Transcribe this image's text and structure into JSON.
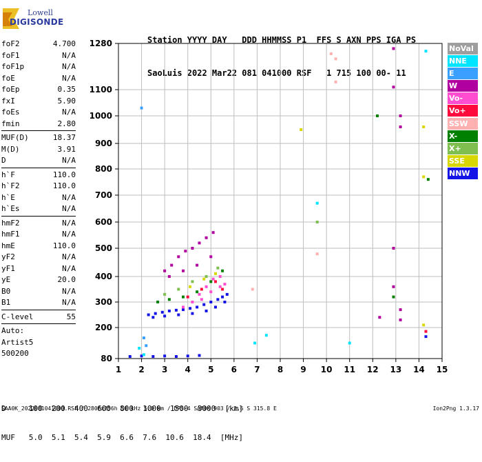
{
  "logo": {
    "line1": "Lowell",
    "line2": "DIGISONDE"
  },
  "header": {
    "labels": "Station YYYY DAY   DDD HHMMSS P1  FFS S AXN PPS IGA PS",
    "values": "SaoLuis 2022 Mar22 081 041000 RSF   1 715 100 00- 11"
  },
  "params": [
    {
      "name": "foF2",
      "value": "4.700"
    },
    {
      "name": "foF1",
      "value": "N/A"
    },
    {
      "name": "foF1p",
      "value": "N/A"
    },
    {
      "name": "foE",
      "value": "N/A"
    },
    {
      "name": "foEp",
      "value": "0.35"
    },
    {
      "name": "fxI",
      "value": "5.90"
    },
    {
      "name": "foEs",
      "value": "N/A"
    },
    {
      "name": "fmin",
      "value": "2.80"
    },
    {
      "name": "MUF(D)",
      "value": "18.37"
    },
    {
      "name": "M(D)",
      "value": "3.91"
    },
    {
      "name": "D",
      "value": "N/A"
    },
    {
      "name": "h`F",
      "value": "110.0"
    },
    {
      "name": "h`F2",
      "value": "110.0"
    },
    {
      "name": "h`E",
      "value": "N/A"
    },
    {
      "name": "h`Es",
      "value": "N/A"
    },
    {
      "name": "hmF2",
      "value": "N/A"
    },
    {
      "name": "hmF1",
      "value": "N/A"
    },
    {
      "name": "hmE",
      "value": "110.0"
    },
    {
      "name": "yF2",
      "value": "N/A"
    },
    {
      "name": "yF1",
      "value": "N/A"
    },
    {
      "name": "yE",
      "value": "20.0"
    },
    {
      "name": "B0",
      "value": "N/A"
    },
    {
      "name": "B1",
      "value": "N/A"
    },
    {
      "name": "C-level",
      "value": "55"
    }
  ],
  "auto": {
    "line1": "Auto:",
    "line2": "Artist5",
    "line3": "500200"
  },
  "legend": [
    {
      "label": "NoVal",
      "color": "#9e9e9e"
    },
    {
      "label": "NNE",
      "color": "#00e5ff"
    },
    {
      "label": "E",
      "color": "#3aa0ff"
    },
    {
      "label": "W",
      "color": "#b0009e"
    },
    {
      "label": "Vo-",
      "color": "#ff4fd0"
    },
    {
      "label": "Vo+",
      "color": "#ff0a3c"
    },
    {
      "label": "SSW",
      "color": "#ffb0b0"
    },
    {
      "label": "X-",
      "color": "#008000"
    },
    {
      "label": "X+",
      "color": "#7fbf4f"
    },
    {
      "label": "SSE",
      "color": "#d8d800"
    },
    {
      "label": "NNW",
      "color": "#1414e6"
    }
  ],
  "footer": {
    "d_line": "D     100  200  400  600  800  1000  1500  3000  [km]",
    "muf_line": "MUF   5.0  5.1  5.4  5.9  6.6  7.6  10.6  18.4  [MHz]",
    "file_line": "SAA0K_2022081041000.RSF / 280fx256h 50 kHz 5.0 km / DPS-4 SAA0K 903 / 2.6 S 315.8 E",
    "version": "Ion2Png 1.3.17"
  },
  "chart_data": {
    "type": "scatter",
    "xlabel": "",
    "ylabel": "",
    "xlim": [
      1,
      15
    ],
    "ylim": [
      80,
      1280
    ],
    "x_ticks": [
      1,
      2,
      3,
      4,
      5,
      6,
      7,
      8,
      9,
      10,
      11,
      12,
      13,
      14,
      15
    ],
    "y_ticks": [
      80,
      200,
      300,
      400,
      500,
      600,
      700,
      800,
      900,
      1000,
      1100,
      1280
    ],
    "grid": true,
    "legend_position": "right",
    "series": [
      {
        "name": "NNW",
        "color": "#1414e6",
        "points": [
          [
            2.3,
            250
          ],
          [
            2.6,
            255
          ],
          [
            2.9,
            260
          ],
          [
            3.2,
            265
          ],
          [
            3.5,
            268
          ],
          [
            3.8,
            270
          ],
          [
            4.1,
            275
          ],
          [
            4.4,
            280
          ],
          [
            4.7,
            290
          ],
          [
            5.0,
            300
          ],
          [
            5.3,
            310
          ],
          [
            5.5,
            320
          ],
          [
            5.7,
            330
          ],
          [
            2.5,
            240
          ],
          [
            3.0,
            245
          ],
          [
            3.6,
            250
          ],
          [
            4.2,
            255
          ],
          [
            4.8,
            265
          ],
          [
            5.2,
            280
          ],
          [
            5.6,
            300
          ],
          [
            1.5,
            88
          ],
          [
            2.0,
            90
          ],
          [
            2.5,
            88
          ],
          [
            3.0,
            90
          ],
          [
            3.5,
            88
          ],
          [
            4.0,
            90
          ],
          [
            4.5,
            92
          ],
          [
            14.3,
            165
          ]
        ]
      },
      {
        "name": "W",
        "color": "#b0009e",
        "points": [
          [
            3.0,
            420
          ],
          [
            3.3,
            440
          ],
          [
            3.6,
            470
          ],
          [
            3.9,
            490
          ],
          [
            4.2,
            500
          ],
          [
            4.5,
            520
          ],
          [
            4.8,
            540
          ],
          [
            5.1,
            560
          ],
          [
            3.2,
            400
          ],
          [
            3.8,
            420
          ],
          [
            4.4,
            440
          ],
          [
            5.0,
            470
          ],
          [
            12.9,
            1260
          ],
          [
            12.9,
            1110
          ],
          [
            13.2,
            1000
          ],
          [
            13.2,
            960
          ],
          [
            12.9,
            500
          ],
          [
            12.9,
            360
          ],
          [
            13.2,
            270
          ],
          [
            13.2,
            230
          ],
          [
            12.3,
            240
          ]
        ]
      },
      {
        "name": "Vo-",
        "color": "#ff4fd0",
        "points": [
          [
            4.2,
            300
          ],
          [
            4.5,
            330
          ],
          [
            4.8,
            360
          ],
          [
            5.1,
            390
          ],
          [
            5.4,
            400
          ],
          [
            5.6,
            370
          ],
          [
            4.6,
            310
          ],
          [
            5.0,
            340
          ],
          [
            5.4,
            360
          ],
          [
            3.8,
            280
          ]
        ]
      },
      {
        "name": "Vo+",
        "color": "#ff0a3c",
        "points": [
          [
            4.0,
            320
          ],
          [
            4.6,
            350
          ],
          [
            5.2,
            380
          ],
          [
            5.5,
            350
          ],
          [
            14.3,
            185
          ]
        ]
      },
      {
        "name": "X-",
        "color": "#008000",
        "points": [
          [
            2.7,
            300
          ],
          [
            3.2,
            310
          ],
          [
            3.8,
            320
          ],
          [
            4.4,
            340
          ],
          [
            5.0,
            380
          ],
          [
            5.5,
            420
          ],
          [
            12.2,
            1000
          ],
          [
            12.9,
            320
          ],
          [
            14.4,
            760
          ]
        ]
      },
      {
        "name": "X+",
        "color": "#7fbf4f",
        "points": [
          [
            3.0,
            330
          ],
          [
            3.6,
            350
          ],
          [
            4.2,
            380
          ],
          [
            4.8,
            400
          ],
          [
            5.3,
            430
          ],
          [
            9.6,
            600
          ]
        ]
      },
      {
        "name": "SSE",
        "color": "#d8d800",
        "points": [
          [
            4.1,
            360
          ],
          [
            4.7,
            390
          ],
          [
            5.2,
            410
          ],
          [
            8.9,
            950
          ],
          [
            14.2,
            960
          ],
          [
            14.2,
            770
          ],
          [
            14.2,
            210
          ]
        ]
      },
      {
        "name": "NNE",
        "color": "#00e5ff",
        "points": [
          [
            1.9,
            120
          ],
          [
            2.1,
            95
          ],
          [
            6.9,
            140
          ],
          [
            7.4,
            170
          ],
          [
            9.6,
            670
          ],
          [
            11.0,
            140
          ],
          [
            14.3,
            1250
          ]
        ]
      },
      {
        "name": "E",
        "color": "#3aa0ff",
        "points": [
          [
            2.0,
            1030
          ],
          [
            2.1,
            160
          ],
          [
            2.2,
            130
          ]
        ]
      },
      {
        "name": "SSW",
        "color": "#ffb0b0",
        "points": [
          [
            10.2,
            1240
          ],
          [
            10.4,
            1220
          ],
          [
            10.4,
            1130
          ],
          [
            9.6,
            480
          ],
          [
            6.8,
            350
          ]
        ]
      }
    ]
  }
}
